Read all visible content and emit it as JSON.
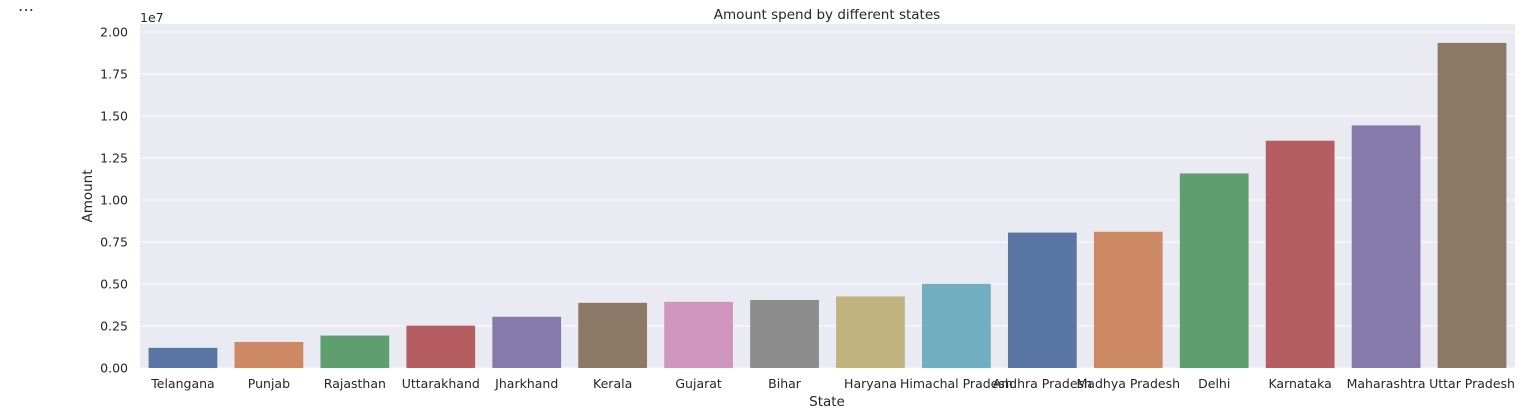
{
  "cell_marker": "…",
  "chart_data": {
    "type": "bar",
    "title": "Amount spend by different states",
    "xlabel": "State",
    "ylabel": "Amount",
    "offset_label": "1e7",
    "ylim": [
      0,
      2.0
    ],
    "yticks": [
      "0.00",
      "0.25",
      "0.50",
      "0.75",
      "1.00",
      "1.25",
      "1.50",
      "1.75",
      "2.00"
    ],
    "grid": true,
    "categories": [
      "Telangana",
      "Punjab",
      "Rajasthan",
      "Uttarakhand",
      "Jharkhand",
      "Kerala",
      "Gujarat",
      "Bihar",
      "Haryana",
      "Himachal Pradesh",
      "Andhra Pradesh",
      "Madhya Pradesh",
      "Delhi",
      "Karnataka",
      "Maharashtra",
      "Uttar Pradesh"
    ],
    "values": [
      1200000,
      1550000,
      1930000,
      2520000,
      3050000,
      3880000,
      3940000,
      4050000,
      4260000,
      5010000,
      8060000,
      8110000,
      11580000,
      13530000,
      14440000,
      19350000
    ],
    "colors": [
      "#5875a4",
      "#cc8963",
      "#5f9e6e",
      "#b55d60",
      "#857aab",
      "#8d7866",
      "#d095bf",
      "#8c8c8c",
      "#c1b37f",
      "#71aec0",
      "#5875a4",
      "#cc8963",
      "#5f9e6e",
      "#b55d60",
      "#857aab",
      "#8d7866"
    ]
  }
}
